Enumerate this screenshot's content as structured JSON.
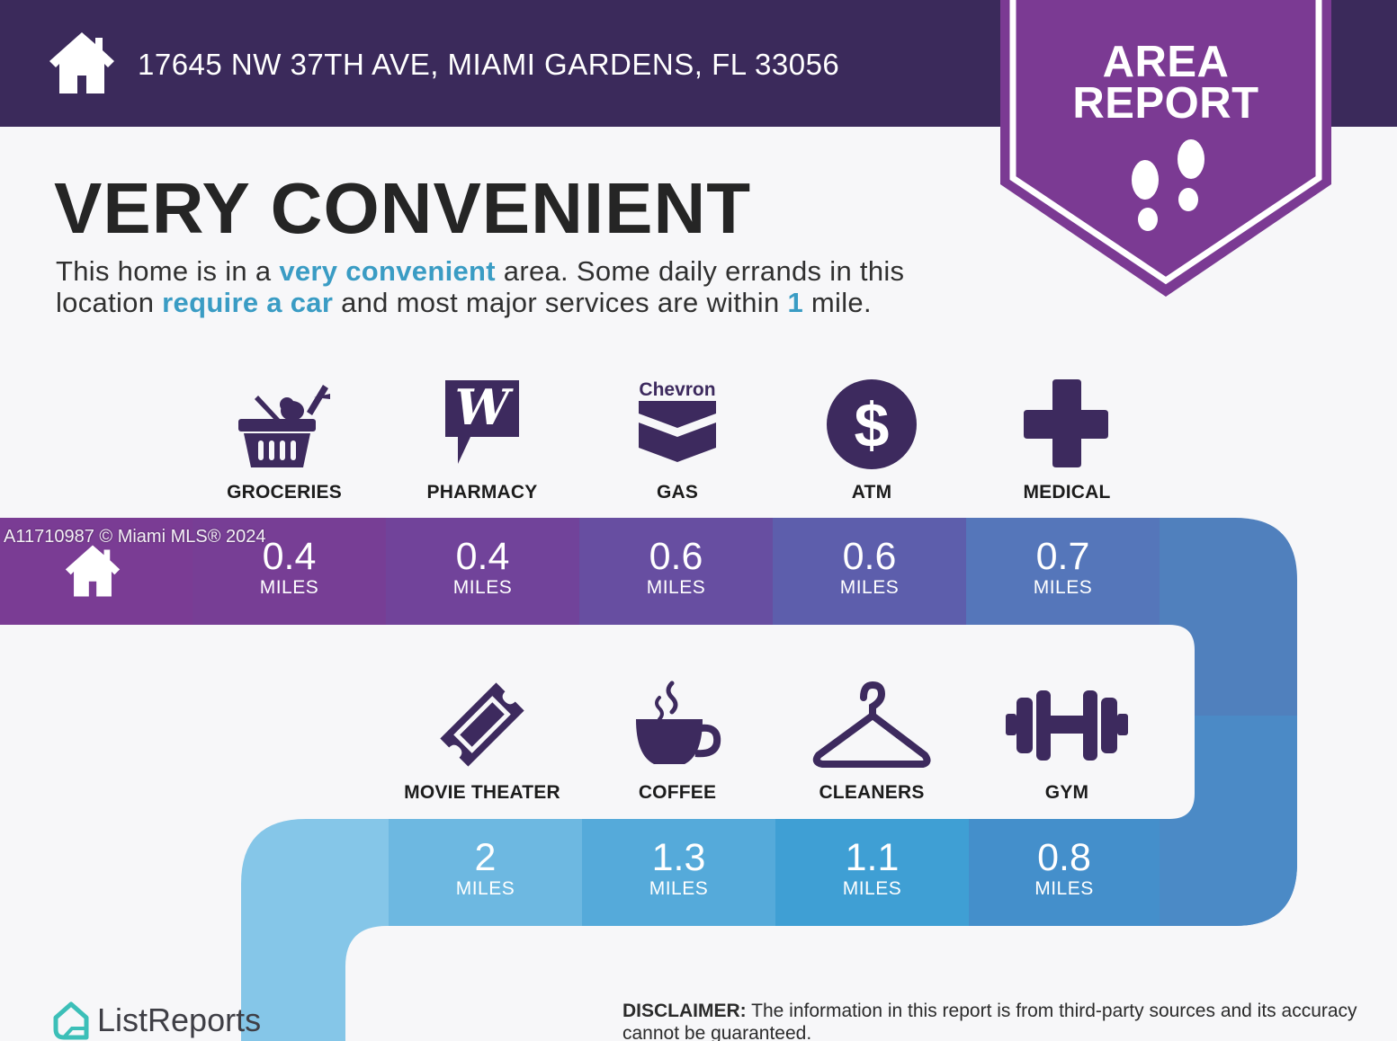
{
  "header": {
    "address": "17645 NW 37TH AVE, MIAMI GARDENS, FL 33056"
  },
  "badge": {
    "title": "AREA\nREPORT"
  },
  "headline": "VERY CONVENIENT",
  "summary": {
    "part1": "This home is in a ",
    "hl1": "very convenient",
    "part2": " area. Some daily errands in this location ",
    "hl2": "require a car",
    "part3": " and most major services are within ",
    "hl3": "1",
    "part4": " mile."
  },
  "row1": [
    {
      "label": "GROCERIES",
      "value": "0.4",
      "unit": "MILES",
      "icon": "grocery-basket-icon"
    },
    {
      "label": "PHARMACY",
      "value": "0.4",
      "unit": "MILES",
      "icon": "walgreens-logo-icon"
    },
    {
      "label": "GAS",
      "value": "0.6",
      "unit": "MILES",
      "icon": "chevron-logo-icon",
      "brand_text": "Chevron"
    },
    {
      "label": "ATM",
      "value": "0.6",
      "unit": "MILES",
      "icon": "dollar-icon",
      "symbol": "$"
    },
    {
      "label": "MEDICAL",
      "value": "0.7",
      "unit": "MILES",
      "icon": "medical-cross-icon"
    }
  ],
  "row2": [
    {
      "label": "MOVIE THEATER",
      "value": "2",
      "unit": "MILES",
      "icon": "ticket-icon"
    },
    {
      "label": "COFFEE",
      "value": "1.3",
      "unit": "MILES",
      "icon": "coffee-cup-icon"
    },
    {
      "label": "CLEANERS",
      "value": "1.1",
      "unit": "MILES",
      "icon": "hanger-icon"
    },
    {
      "label": "GYM",
      "value": "0.8",
      "unit": "MILES",
      "icon": "dumbbell-icon"
    }
  ],
  "watermark": "A11710987 © Miami MLS® 2024",
  "brand": "ListReports",
  "disclaimer": {
    "label": "DISCLAIMER:",
    "text": " The information in this report is from third-party sources and its accuracy cannot be guaranteed."
  },
  "colors": {
    "header": "#3b2a5b",
    "badge": "#7b3a93",
    "icon": "#3d2a5e",
    "highlight": "#3a9cc4",
    "row1_bands": [
      "#7a3c94",
      "#734097",
      "#684a9e",
      "#5d5aa8",
      "#5577b8",
      "#5080bd"
    ],
    "row2_bands": [
      "#85c6e8",
      "#62b1de",
      "#4aa6d9",
      "#3f9ad3",
      "#4a8cc8",
      "#4c84c3"
    ]
  }
}
